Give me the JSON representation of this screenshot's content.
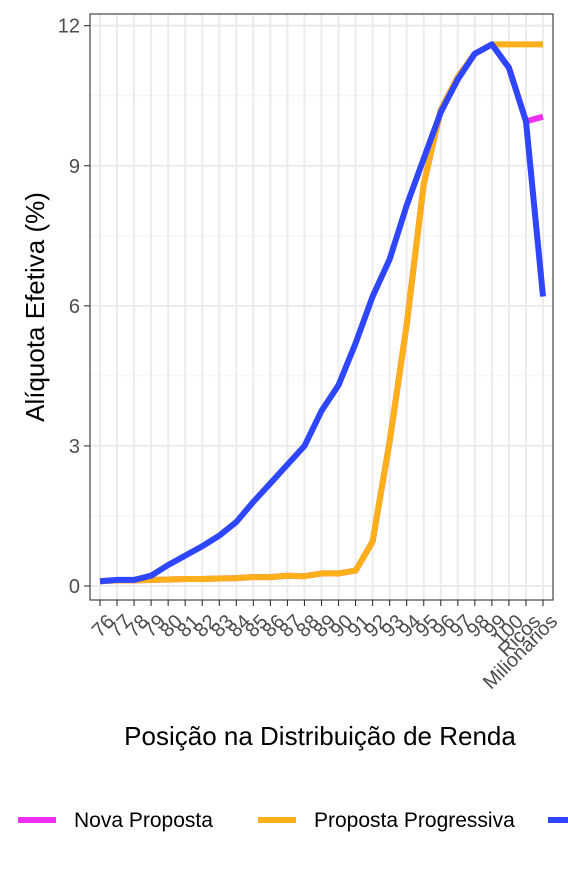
{
  "chart_data": {
    "type": "line",
    "title": "",
    "xlabel": "Posição na Distribuição de Renda",
    "ylabel": "Alíquota Efetiva (%)",
    "ylim": [
      -0.3,
      12.25
    ],
    "yticks": [
      0,
      3,
      6,
      9,
      12
    ],
    "ytick_labels": [
      "0",
      "3",
      "6",
      "9",
      "12"
    ],
    "grid": true,
    "legend_position": "bottom",
    "categories": [
      "76",
      "77",
      "78",
      "79",
      "80",
      "81",
      "82",
      "83",
      "84",
      "85",
      "86",
      "87",
      "88",
      "89",
      "90",
      "91",
      "92",
      "93",
      "94",
      "95",
      "96",
      "97",
      "98",
      "99",
      "100",
      "Ricos",
      "Milionários"
    ],
    "x_tick_labels": [
      "76",
      "77",
      "78",
      "79",
      "80",
      "81",
      "82",
      "83",
      "84",
      "85",
      "86",
      "87",
      "88",
      "89",
      "90",
      "91",
      "92",
      "93",
      "94",
      "95",
      "96",
      "97",
      "98",
      "99",
      "100",
      "Ricos",
      "Milionários"
    ],
    "series": [
      {
        "name": "Nova Proposta",
        "color": "#ee30f0",
        "values": [
          0.1,
          0.12,
          0.12,
          0.13,
          0.14,
          0.15,
          0.15,
          0.16,
          0.17,
          0.19,
          0.19,
          0.22,
          0.21,
          0.27,
          0.27,
          0.33,
          0.95,
          3.1,
          5.6,
          8.6,
          10.2,
          10.9,
          11.4,
          11.6,
          11.1,
          9.95,
          10.05
        ]
      },
      {
        "name": "Proposta Progressiva",
        "color": "#fdb019",
        "values": [
          0.1,
          0.12,
          0.12,
          0.13,
          0.14,
          0.15,
          0.15,
          0.16,
          0.17,
          0.19,
          0.19,
          0.22,
          0.21,
          0.27,
          0.27,
          0.33,
          0.95,
          3.1,
          5.6,
          8.6,
          10.2,
          10.9,
          11.4,
          11.6,
          11.6,
          11.6,
          11.6
        ]
      },
      {
        "name": "",
        "color": "#2e46ff",
        "values": [
          0.1,
          0.13,
          0.13,
          0.22,
          0.45,
          0.65,
          0.85,
          1.08,
          1.37,
          1.8,
          2.2,
          2.6,
          3.0,
          3.75,
          4.3,
          5.2,
          6.2,
          7.0,
          8.15,
          9.15,
          10.15,
          10.85,
          11.4,
          11.6,
          11.1,
          9.95,
          6.2
        ]
      }
    ]
  }
}
